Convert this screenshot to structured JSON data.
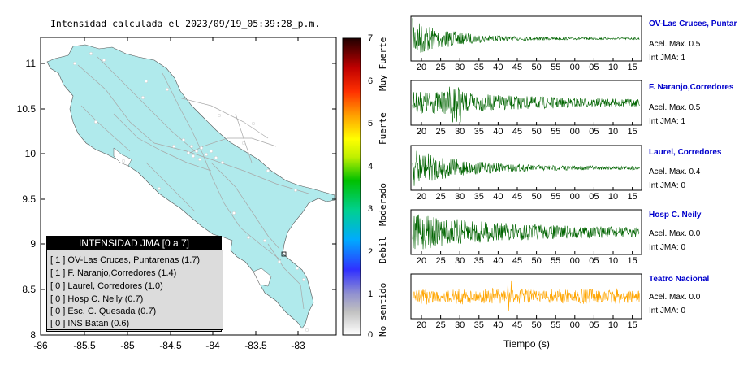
{
  "map": {
    "title": "Intensidad calculada el 2023/09/19_05:39:28_p.m.",
    "y_ticks": [
      "11",
      "10.5",
      "10",
      "9.5",
      "9",
      "8.5",
      "8"
    ],
    "x_ticks": [
      "-86",
      "-85.5",
      "-85",
      "-84.5",
      "-84",
      "-83.5",
      "-83"
    ],
    "land_color": "#b0eaec",
    "sea_color": "#ffffff"
  },
  "colorbar": {
    "values": [
      "7",
      "6",
      "5",
      "4",
      "3",
      "2",
      "1",
      "0"
    ],
    "categories": [
      "Muy Fuerte",
      "Fuerte",
      "Moderado",
      "Debil",
      "No sentido"
    ]
  },
  "legend": {
    "title": "INTENSIDAD JMA [0 a 7]",
    "entries": [
      "[ 1 ] OV-Las Cruces, Puntarenas (1.7)",
      "[ 1 ] F. Naranjo,Corredores (1.4)",
      "[ 0 ] Laurel, Corredores (1.0)",
      "[ 0 ] Hosp C. Neily (0.7)",
      "[ 0 ] Esc. C. Quesada (0.7)",
      "[ 0 ] INS Batan (0.6)"
    ]
  },
  "waveforms": {
    "time_ticks": [
      "20",
      "25",
      "30",
      "35",
      "40",
      "45",
      "50",
      "55",
      "00",
      "05",
      "10",
      "15"
    ],
    "time_label": "Tiempo (s)",
    "stations": [
      {
        "name": "OV-Las Cruces, Puntar",
        "acel": "Acel. Max. 0.5",
        "jma": "Int JMA: 1",
        "color": "#006400"
      },
      {
        "name": "F. Naranjo,Corredores",
        "acel": "Acel. Max. 0.5",
        "jma": "Int JMA: 1",
        "color": "#006400"
      },
      {
        "name": "Laurel, Corredores",
        "acel": "Acel. Max. 0.4",
        "jma": "Int JMA: 0",
        "color": "#006400"
      },
      {
        "name": "Hosp C. Neily",
        "acel": "Acel. Max. 0.0",
        "jma": "Int JMA: 0",
        "color": "#006400"
      },
      {
        "name": "Teatro Nacional",
        "acel": "Acel. Max. 0.0",
        "jma": "Int JMA: 0",
        "color": "#ffa500"
      }
    ]
  }
}
